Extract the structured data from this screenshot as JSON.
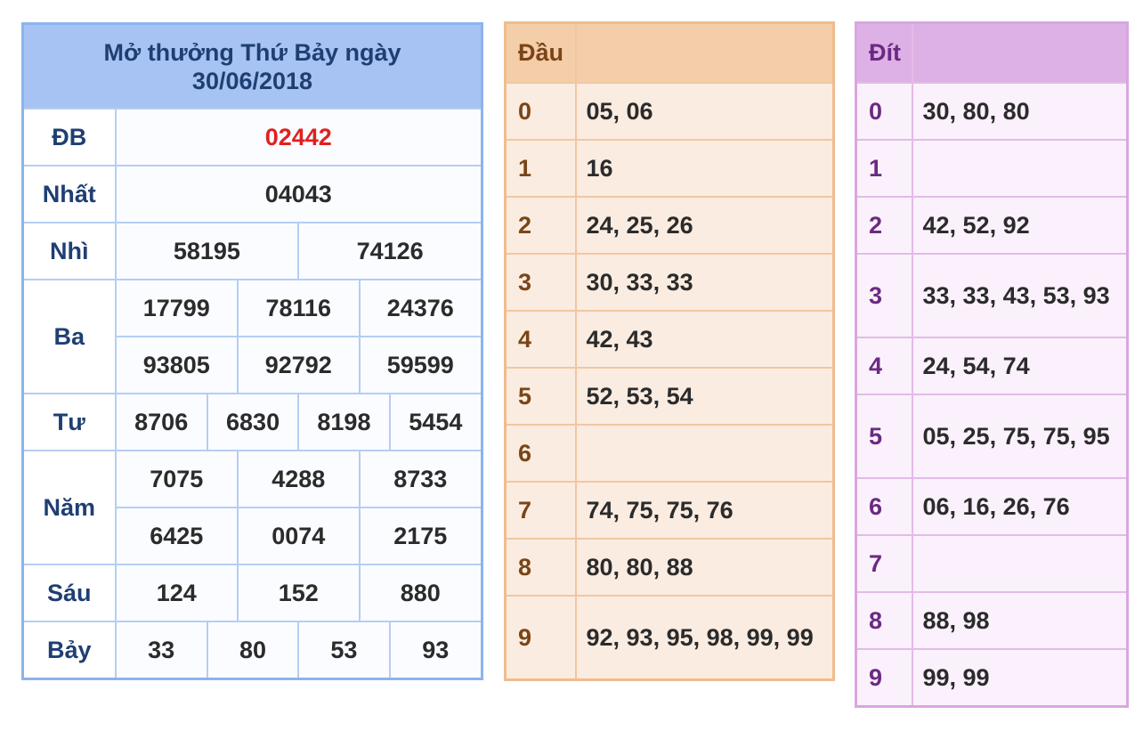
{
  "results": {
    "title_line1": "Mở thưởng Thứ Bảy ngày",
    "title_line2": "30/06/2018",
    "db": {
      "label": "ĐB",
      "numbers": [
        "02442"
      ]
    },
    "nhat": {
      "label": "Nhất",
      "numbers": [
        "04043"
      ]
    },
    "nhi": {
      "label": "Nhì",
      "numbers": [
        "58195",
        "74126"
      ]
    },
    "ba": {
      "label": "Ba",
      "numbers": [
        "17799",
        "78116",
        "24376",
        "93805",
        "92792",
        "59599"
      ]
    },
    "tu": {
      "label": "Tư",
      "numbers": [
        "8706",
        "6830",
        "8198",
        "5454"
      ]
    },
    "nam": {
      "label": "Năm",
      "numbers": [
        "7075",
        "4288",
        "8733",
        "6425",
        "0074",
        "2175"
      ]
    },
    "sau": {
      "label": "Sáu",
      "numbers": [
        "124",
        "152",
        "880"
      ]
    },
    "bay": {
      "label": "Bảy",
      "numbers": [
        "33",
        "80",
        "53",
        "93"
      ]
    }
  },
  "head": {
    "header": "Đầu",
    "rows": [
      {
        "key": "0",
        "value": "05, 06"
      },
      {
        "key": "1",
        "value": "16"
      },
      {
        "key": "2",
        "value": "24, 25, 26"
      },
      {
        "key": "3",
        "value": "30, 33, 33"
      },
      {
        "key": "4",
        "value": "42, 43"
      },
      {
        "key": "5",
        "value": "52, 53, 54"
      },
      {
        "key": "6",
        "value": ""
      },
      {
        "key": "7",
        "value": "74, 75, 75, 76"
      },
      {
        "key": "8",
        "value": "80, 80, 88"
      },
      {
        "key": "9",
        "value": "92, 93, 95, 98, 99, 99"
      }
    ]
  },
  "tail": {
    "header": "Đít",
    "rows": [
      {
        "key": "0",
        "value": "30, 80, 80"
      },
      {
        "key": "1",
        "value": ""
      },
      {
        "key": "2",
        "value": "42, 52, 92"
      },
      {
        "key": "3",
        "value": "33, 33, 43, 53, 93"
      },
      {
        "key": "4",
        "value": "24, 54, 74"
      },
      {
        "key": "5",
        "value": "05, 25, 75, 75, 95"
      },
      {
        "key": "6",
        "value": "06, 16, 26, 76"
      },
      {
        "key": "7",
        "value": ""
      },
      {
        "key": "8",
        "value": "88, 98"
      },
      {
        "key": "9",
        "value": "99, 99"
      }
    ]
  },
  "colors": {
    "results_header_bg": "#a6c3f3",
    "results_border": "#8db3ee",
    "special_prize": "#e02020",
    "head_header_bg": "#f4cda9",
    "head_body_bg": "#fbece1",
    "tail_header_bg": "#ddb1e6",
    "tail_body_bg": "#fbf1fc"
  }
}
